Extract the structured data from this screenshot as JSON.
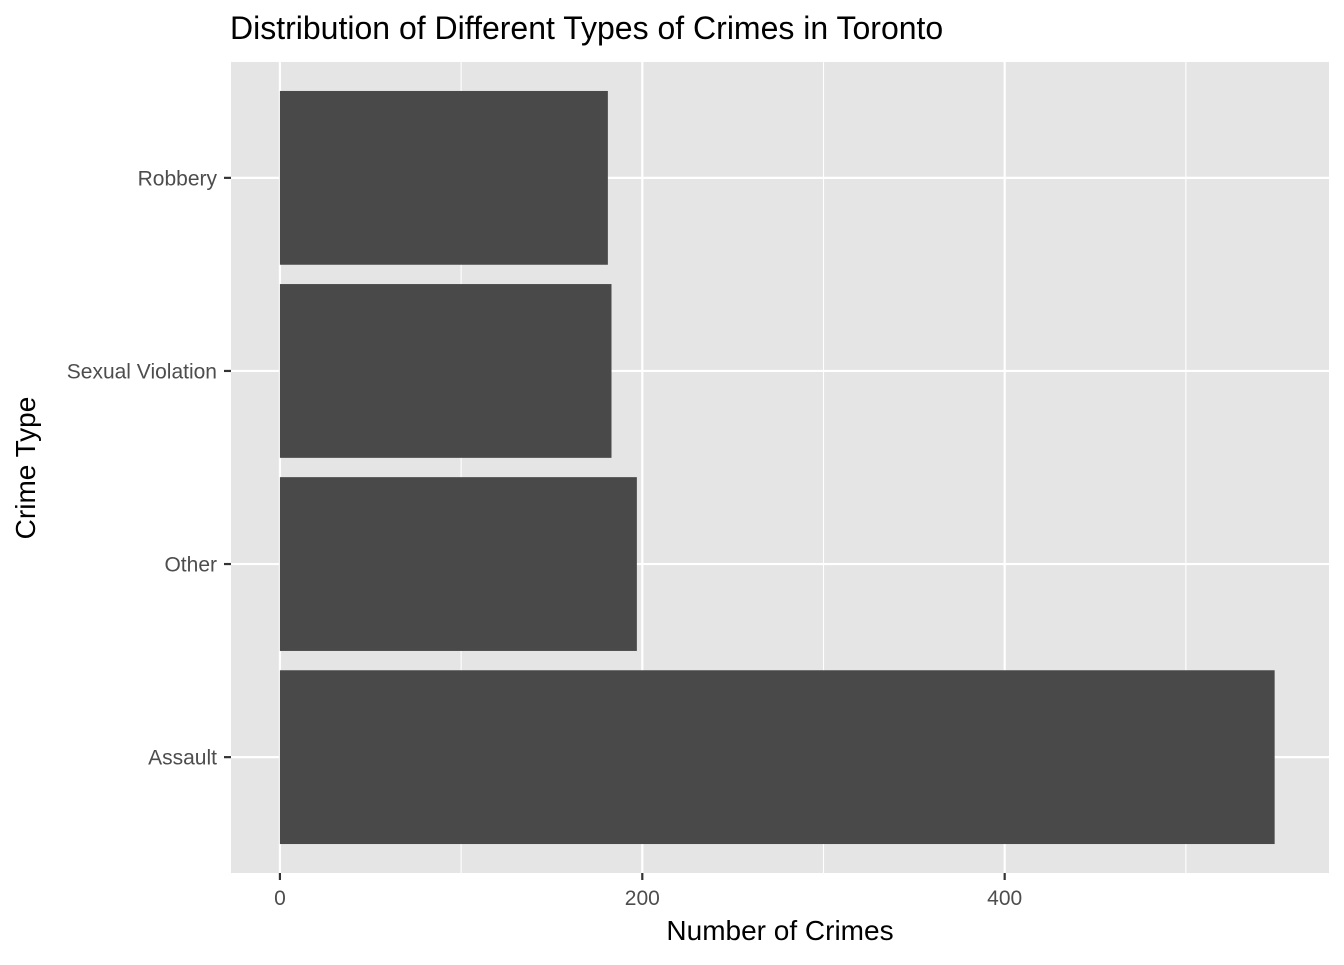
{
  "chart_data": {
    "type": "bar",
    "orientation": "horizontal",
    "title": "Distribution of Different Types of Crimes in Toronto",
    "xlabel": "Number of Crimes",
    "ylabel": "Crime Type",
    "categories": [
      "Assault",
      "Other",
      "Sexual Violation",
      "Robbery"
    ],
    "values": [
      549,
      197,
      183,
      181
    ],
    "xlim": [
      -27,
      579
    ],
    "x_ticks": [
      0,
      200,
      400
    ],
    "x_minor_ticks": [
      100,
      300,
      500
    ],
    "grid": true,
    "legend": "none",
    "colors": {
      "bar": "#494949",
      "panel_background": "#e5e5e5",
      "grid": "#ffffff",
      "tick_text": "#4d4d4d",
      "axis_tick": "#333333"
    }
  }
}
